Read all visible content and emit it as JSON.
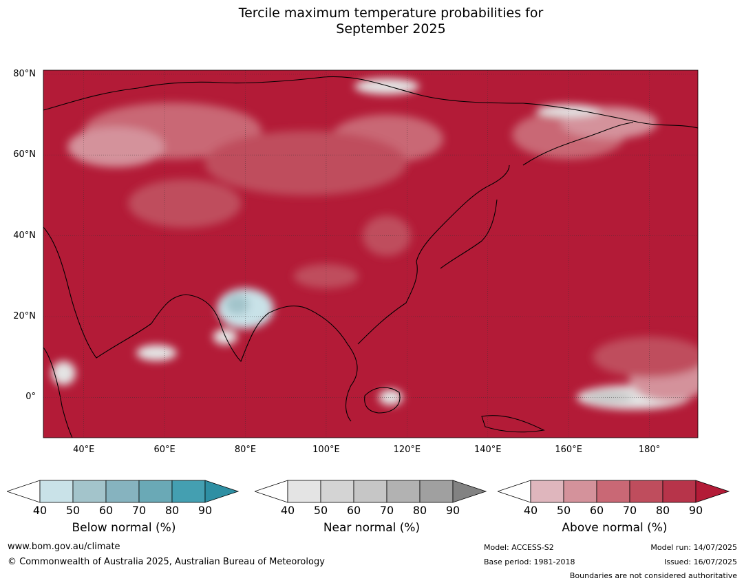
{
  "title": {
    "line1": "Tercile maximum temperature probabilities for",
    "line2": "September 2025"
  },
  "map": {
    "lat_labels": [
      "80°N",
      "60°N",
      "40°N",
      "20°N",
      "0°"
    ],
    "lon_labels": [
      "40°E",
      "60°E",
      "80°E",
      "100°E",
      "120°E",
      "140°E",
      "160°E",
      "180°"
    ],
    "extent": {
      "lon_min": 30,
      "lon_max": 192,
      "lat_min": -10,
      "lat_max": 81
    },
    "background_color": "#b31b37",
    "overlays": [
      {
        "category": "above",
        "level": 60,
        "lon": 62,
        "lat": 66,
        "rlon": 22,
        "rlat": 7
      },
      {
        "category": "above",
        "level": 60,
        "lon": 115,
        "lat": 64,
        "rlon": 14,
        "rlat": 6
      },
      {
        "category": "above",
        "level": 60,
        "lon": 160,
        "lat": 65,
        "rlon": 14,
        "rlat": 6
      },
      {
        "category": "above",
        "level": 50,
        "lon": 48,
        "lat": 62,
        "rlon": 12,
        "rlat": 5
      },
      {
        "category": "above",
        "level": 50,
        "lon": 170,
        "lat": 68,
        "rlon": 12,
        "rlat": 4
      },
      {
        "category": "above",
        "level": 70,
        "lon": 95,
        "lat": 58,
        "rlon": 25,
        "rlat": 8
      },
      {
        "category": "above",
        "level": 70,
        "lon": 65,
        "lat": 48,
        "rlon": 14,
        "rlat": 6
      },
      {
        "category": "above",
        "level": 70,
        "lon": 100,
        "lat": 30,
        "rlon": 8,
        "rlat": 3
      },
      {
        "category": "above",
        "level": 70,
        "lon": 115,
        "lat": 40,
        "rlon": 6,
        "rlat": 5
      },
      {
        "category": "near",
        "level": 40,
        "lon": 115,
        "lat": 77,
        "rlon": 8,
        "rlat": 2
      },
      {
        "category": "near",
        "level": 40,
        "lon": 160,
        "lat": 71,
        "rlon": 8,
        "rlat": 1.5
      },
      {
        "category": "below",
        "level": 40,
        "lon": 80,
        "lat": 22,
        "rlon": 7,
        "rlat": 5
      },
      {
        "category": "below",
        "level": 50,
        "lon": 78,
        "lat": 23,
        "rlon": 3,
        "rlat": 2.5
      },
      {
        "category": "near",
        "level": 40,
        "lon": 75,
        "lat": 15,
        "rlon": 3,
        "rlat": 2
      },
      {
        "category": "near",
        "level": 40,
        "lon": 35,
        "lat": 6,
        "rlon": 3,
        "rlat": 3
      },
      {
        "category": "near",
        "level": 40,
        "lon": 58,
        "lat": 11,
        "rlon": 5,
        "rlat": 2
      },
      {
        "category": "near",
        "level": 40,
        "lon": 116,
        "lat": 0,
        "rlon": 3,
        "rlat": 2
      },
      {
        "category": "near",
        "level": 40,
        "lon": 176,
        "lat": 0,
        "rlon": 14,
        "rlat": 3
      },
      {
        "category": "near",
        "level": 60,
        "lon": 170,
        "lat": 0,
        "rlon": 6,
        "rlat": 1.5
      },
      {
        "category": "above",
        "level": 50,
        "lon": 185,
        "lat": 5,
        "rlon": 10,
        "rlat": 6
      },
      {
        "category": "above",
        "level": 70,
        "lon": 180,
        "lat": 10,
        "rlon": 14,
        "rlat": 5
      }
    ]
  },
  "legends": [
    {
      "title": "Below normal (%)",
      "ticks": [
        "40",
        "50",
        "60",
        "70",
        "80",
        "90"
      ],
      "colors": [
        "#c9e2e8",
        "#a3c4cb",
        "#86b3bf",
        "#6aa9b6",
        "#449fb1",
        "#2e8fa3"
      ]
    },
    {
      "title": "Near normal (%)",
      "ticks": [
        "40",
        "50",
        "60",
        "70",
        "80",
        "90"
      ],
      "colors": [
        "#e4e4e4",
        "#d4d4d4",
        "#c6c6c6",
        "#b2b2b2",
        "#a0a0a0",
        "#828282"
      ]
    },
    {
      "title": "Above normal (%)",
      "ticks": [
        "40",
        "50",
        "60",
        "70",
        "80",
        "90"
      ],
      "colors": [
        "#dfb6bd",
        "#d4929b",
        "#c96875",
        "#bf4d5d",
        "#b7344a",
        "#b31b37"
      ]
    }
  ],
  "footer": {
    "website": "www.bom.gov.au/climate",
    "copyright": "© Commonwealth of Australia 2025, Australian Bureau of Meteorology",
    "model": "Model: ACCESS-S2",
    "base_period": "Base period: 1981-2018",
    "model_run": "Model run: 14/07/2025",
    "issued": "Issued: 16/07/2025",
    "disclaimer": "Boundaries are not considered authoritative"
  }
}
